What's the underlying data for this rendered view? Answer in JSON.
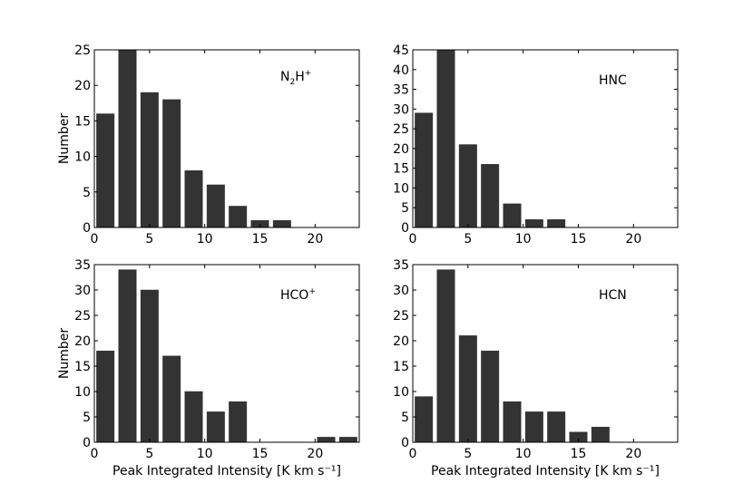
{
  "figure": {
    "xlabel": "Peak Integrated Intensity [K km s⁻¹]",
    "ylabel": "Number"
  },
  "chart_data": [
    {
      "type": "bar",
      "species": {
        "text": "N₂H⁺",
        "base": "N",
        "sub": "2",
        "mid": "H",
        "sup": "+"
      },
      "xlim": [
        0,
        24
      ],
      "ylim": [
        0,
        25
      ],
      "xticks": [
        0,
        5,
        10,
        15,
        20
      ],
      "yticks": [
        0,
        5,
        10,
        15,
        20,
        25
      ],
      "bin_starts": [
        0,
        2,
        4,
        6,
        8,
        10,
        12,
        14,
        16,
        18,
        20,
        22
      ],
      "bin_width": 2,
      "values": [
        16,
        25,
        19,
        18,
        8,
        6,
        3,
        1,
        1,
        0,
        0,
        0
      ],
      "show_xlabel": false,
      "show_ylabel": true
    },
    {
      "type": "bar",
      "species": {
        "text": "HNC"
      },
      "xlim": [
        0,
        24
      ],
      "ylim": [
        0,
        45
      ],
      "xticks": [
        0,
        5,
        10,
        15,
        20
      ],
      "yticks": [
        0,
        5,
        10,
        15,
        20,
        25,
        30,
        35,
        40,
        45
      ],
      "bin_starts": [
        0,
        2,
        4,
        6,
        8,
        10,
        12,
        14,
        16,
        18,
        20,
        22
      ],
      "bin_width": 2,
      "values": [
        29,
        45,
        21,
        16,
        6,
        2,
        2,
        0,
        0,
        0,
        0,
        0
      ],
      "show_xlabel": false,
      "show_ylabel": false
    },
    {
      "type": "bar",
      "species": {
        "text": "HCO⁺",
        "base": "HCO",
        "sup": "+"
      },
      "xlim": [
        0,
        24
      ],
      "ylim": [
        0,
        35
      ],
      "xticks": [
        0,
        5,
        10,
        15,
        20
      ],
      "yticks": [
        0,
        5,
        10,
        15,
        20,
        25,
        30,
        35
      ],
      "bin_starts": [
        0,
        2,
        4,
        6,
        8,
        10,
        12,
        14,
        16,
        18,
        20,
        22
      ],
      "bin_width": 2,
      "values": [
        18,
        34,
        30,
        17,
        10,
        6,
        8,
        0,
        0,
        0,
        1,
        1
      ],
      "show_xlabel": true,
      "show_ylabel": true
    },
    {
      "type": "bar",
      "species": {
        "text": "HCN"
      },
      "xlim": [
        0,
        24
      ],
      "ylim": [
        0,
        35
      ],
      "xticks": [
        0,
        5,
        10,
        15,
        20
      ],
      "yticks": [
        0,
        5,
        10,
        15,
        20,
        25,
        30,
        35
      ],
      "bin_starts": [
        0,
        2,
        4,
        6,
        8,
        10,
        12,
        14,
        16,
        18,
        20,
        22
      ],
      "bin_width": 2,
      "values": [
        9,
        34,
        21,
        18,
        8,
        6,
        6,
        2,
        3,
        0,
        0,
        0
      ],
      "show_xlabel": true,
      "show_ylabel": false
    }
  ]
}
